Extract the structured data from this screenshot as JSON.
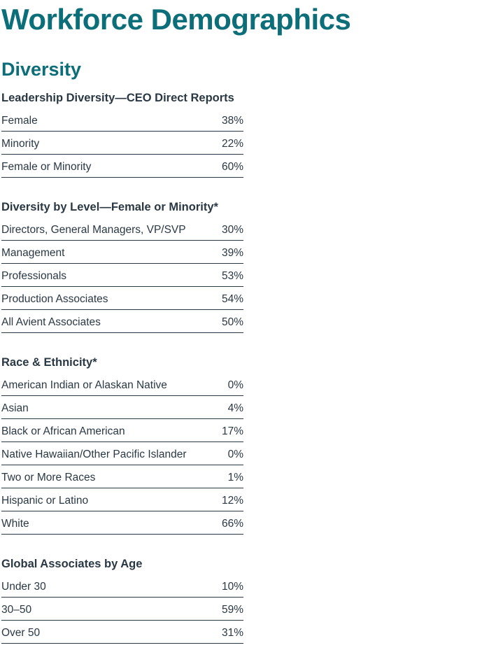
{
  "page": {
    "title": "Workforce Demographics",
    "subtitle": "Diversity"
  },
  "colors": {
    "heading_teal": "#0c6e78",
    "text_dark": "#2a3844",
    "background": "#ffffff"
  },
  "sections": [
    {
      "title": "Leadership Diversity—CEO Direct Reports",
      "rows": [
        {
          "label": "Female",
          "value": "38%"
        },
        {
          "label": "Minority",
          "value": "22%"
        },
        {
          "label": "Female or Minority",
          "value": "60%"
        }
      ]
    },
    {
      "title": "Diversity by Level—Female or Minority*",
      "rows": [
        {
          "label": "Directors, General Managers, VP/SVP",
          "value": "30%"
        },
        {
          "label": "Management",
          "value": "39%"
        },
        {
          "label": "Professionals",
          "value": "53%"
        },
        {
          "label": "Production Associates",
          "value": "54%"
        },
        {
          "label": "All Avient Associates",
          "value": "50%"
        }
      ]
    },
    {
      "title": "Race & Ethnicity*",
      "rows": [
        {
          "label": "American Indian or Alaskan Native",
          "value": "0%"
        },
        {
          "label": "Asian",
          "value": "4%"
        },
        {
          "label": "Black or African American",
          "value": "17%"
        },
        {
          "label": "Native Hawaiian/Other Pacific Islander",
          "value": "0%"
        },
        {
          "label": "Two or More Races",
          "value": "1%"
        },
        {
          "label": "Hispanic or Latino",
          "value": "12%"
        },
        {
          "label": "White",
          "value": "66%"
        }
      ]
    },
    {
      "title": "Global Associates by Age",
      "rows": [
        {
          "label": "Under 30",
          "value": "10%"
        },
        {
          "label": "30–50",
          "value": "59%"
        },
        {
          "label": "Over 50",
          "value": "31%"
        }
      ]
    }
  ]
}
